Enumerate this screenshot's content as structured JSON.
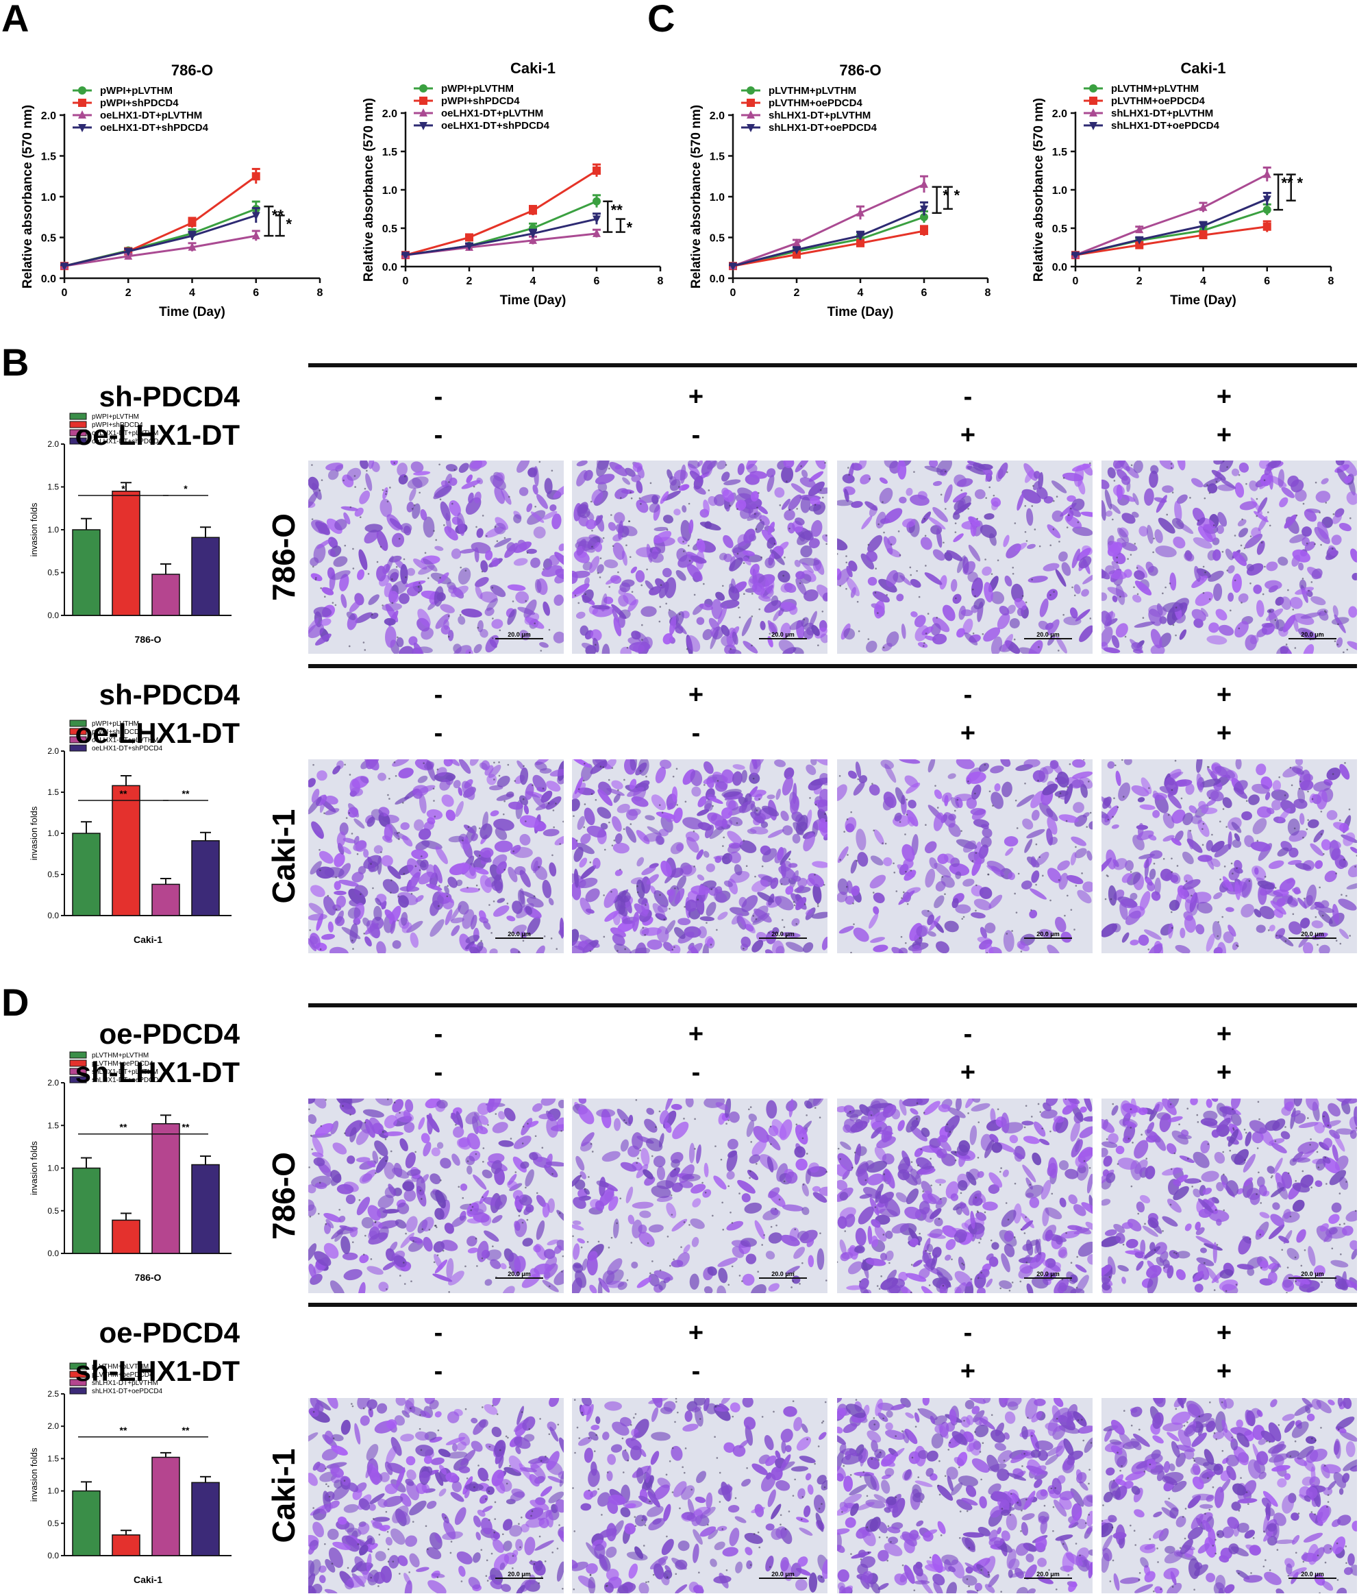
{
  "panels": {
    "A": "A",
    "B": "B",
    "C": "C",
    "D": "D"
  },
  "colors": {
    "green": "#3aa040",
    "red": "#e53327",
    "magenta": "#aa4a92",
    "navy": "#2d2a72",
    "stain": "#8a50c2",
    "field": "#dfe1ec"
  },
  "chart_data": [
    {
      "id": "A1",
      "type": "line",
      "title": "786-O",
      "xlabel": "Time (Day)",
      "ylabel": "Relative absorbance (570 nm)",
      "xlim": [
        0,
        8
      ],
      "ylim": [
        0,
        2.0
      ],
      "xticks": [
        "0",
        "2",
        "4",
        "6",
        "8"
      ],
      "yticks": [
        "0.0",
        "0.5",
        "1.0",
        "1.5",
        "2.0"
      ],
      "x": [
        0,
        2,
        4,
        6
      ],
      "series": [
        {
          "name": "pWPI+pLVTHM",
          "color": "#3aa040",
          "marker": "circle",
          "values": [
            0.15,
            0.34,
            0.55,
            0.85
          ],
          "err": [
            0.01,
            0.03,
            0.05,
            0.09
          ]
        },
        {
          "name": "pWPI+shPDCD4",
          "color": "#e53327",
          "marker": "square",
          "values": [
            0.15,
            0.33,
            0.68,
            1.25
          ],
          "err": [
            0.01,
            0.03,
            0.06,
            0.09
          ]
        },
        {
          "name": "oeLHX1-DT+pLVTHM",
          "color": "#aa4a92",
          "marker": "triangle-up",
          "values": [
            0.15,
            0.27,
            0.38,
            0.52
          ],
          "err": [
            0.01,
            0.03,
            0.05,
            0.06
          ]
        },
        {
          "name": "oeLHX1-DT+shPDCD4",
          "color": "#2d2a72",
          "marker": "triangle-down",
          "values": [
            0.15,
            0.33,
            0.52,
            0.77
          ],
          "err": [
            0.01,
            0.03,
            0.05,
            0.09
          ]
        }
      ],
      "brackets": [
        {
          "x": 6.4,
          "y1": 0.52,
          "y2": 0.88,
          "label": "**"
        },
        {
          "x": 6.75,
          "y1": 0.52,
          "y2": 0.77,
          "label": "*"
        }
      ]
    },
    {
      "id": "A2",
      "type": "line",
      "title": "Caki-1",
      "xlabel": "Time (Day)",
      "ylabel": "Relative absorbance (570 nm)",
      "xlim": [
        0,
        8
      ],
      "ylim": [
        0,
        2.0
      ],
      "xticks": [
        "0",
        "2",
        "4",
        "6",
        "8"
      ],
      "yticks": [
        "0.0",
        "0.5",
        "1.0",
        "1.5",
        "2.0"
      ],
      "x": [
        0,
        2,
        4,
        6
      ],
      "series": [
        {
          "name": "pWPI+pLVTHM",
          "color": "#3aa040",
          "marker": "circle",
          "values": [
            0.15,
            0.27,
            0.5,
            0.85
          ],
          "err": [
            0.01,
            0.03,
            0.06,
            0.08
          ]
        },
        {
          "name": "pWPI+shPDCD4",
          "color": "#e53327",
          "marker": "square",
          "values": [
            0.15,
            0.38,
            0.73,
            1.25
          ],
          "err": [
            0.01,
            0.03,
            0.06,
            0.08
          ]
        },
        {
          "name": "oeLHX1-DT+pLVTHM",
          "color": "#aa4a92",
          "marker": "triangle-up",
          "values": [
            0.15,
            0.25,
            0.34,
            0.43
          ],
          "err": [
            0.01,
            0.03,
            0.05,
            0.05
          ]
        },
        {
          "name": "oeLHX1-DT+shPDCD4",
          "color": "#2d2a72",
          "marker": "triangle-down",
          "values": [
            0.15,
            0.27,
            0.43,
            0.62
          ],
          "err": [
            0.01,
            0.03,
            0.05,
            0.07
          ]
        }
      ],
      "brackets": [
        {
          "x": 6.35,
          "y1": 0.45,
          "y2": 0.85,
          "label": "**"
        },
        {
          "x": 6.75,
          "y1": 0.45,
          "y2": 0.62,
          "label": "*"
        }
      ]
    },
    {
      "id": "C1",
      "type": "line",
      "title": "786-O",
      "xlabel": "Time (Day)",
      "ylabel": "Relative absorbance (570 nm)",
      "xlim": [
        0,
        8
      ],
      "ylim": [
        0,
        2.0
      ],
      "xticks": [
        "0",
        "2",
        "4",
        "6",
        "8"
      ],
      "yticks": [
        "0.0",
        "0.5",
        "1.0",
        "1.5",
        "2.0"
      ],
      "x": [
        0,
        2,
        4,
        6
      ],
      "series": [
        {
          "name": "pLVTHM+pLVTHM",
          "color": "#3aa040",
          "marker": "circle",
          "values": [
            0.15,
            0.33,
            0.48,
            0.75
          ],
          "err": [
            0.01,
            0.03,
            0.05,
            0.07
          ]
        },
        {
          "name": "pLVTHM+oePDCD4",
          "color": "#e53327",
          "marker": "square",
          "values": [
            0.15,
            0.29,
            0.43,
            0.58
          ],
          "err": [
            0.01,
            0.03,
            0.04,
            0.06
          ]
        },
        {
          "name": "shLHX1-DT+pLVTHM",
          "color": "#aa4a92",
          "marker": "triangle-up",
          "values": [
            0.15,
            0.43,
            0.8,
            1.15
          ],
          "err": [
            0.01,
            0.04,
            0.08,
            0.1
          ]
        },
        {
          "name": "shLHX1-DT+oePDCD4",
          "color": "#2d2a72",
          "marker": "triangle-down",
          "values": [
            0.15,
            0.35,
            0.52,
            0.85
          ],
          "err": [
            0.01,
            0.03,
            0.05,
            0.08
          ]
        }
      ],
      "brackets": [
        {
          "x": 6.4,
          "y1": 0.8,
          "y2": 1.12,
          "label": "*"
        },
        {
          "x": 6.75,
          "y1": 0.85,
          "y2": 1.12,
          "label": "*"
        }
      ]
    },
    {
      "id": "C2",
      "type": "line",
      "title": "Caki-1",
      "xlabel": "Time (Day)",
      "ylabel": "Relative absorbance (570 nm)",
      "xlim": [
        0,
        8
      ],
      "ylim": [
        0,
        2.0
      ],
      "xticks": [
        "0",
        "2",
        "4",
        "6",
        "8"
      ],
      "yticks": [
        "0.0",
        "0.5",
        "1.0",
        "1.5",
        "2.0"
      ],
      "x": [
        0,
        2,
        4,
        6
      ],
      "series": [
        {
          "name": "pLVTHM+pLVTHM",
          "color": "#3aa040",
          "marker": "circle",
          "values": [
            0.15,
            0.34,
            0.47,
            0.74
          ],
          "err": [
            0.01,
            0.03,
            0.05,
            0.07
          ]
        },
        {
          "name": "pLVTHM+oePDCD4",
          "color": "#e53327",
          "marker": "square",
          "values": [
            0.15,
            0.28,
            0.41,
            0.52
          ],
          "err": [
            0.01,
            0.03,
            0.05,
            0.07
          ]
        },
        {
          "name": "shLHX1-DT+pLVTHM",
          "color": "#aa4a92",
          "marker": "triangle-up",
          "values": [
            0.15,
            0.48,
            0.77,
            1.2
          ],
          "err": [
            0.01,
            0.04,
            0.06,
            0.09
          ]
        },
        {
          "name": "shLHX1-DT+oePDCD4",
          "color": "#2d2a72",
          "marker": "triangle-down",
          "values": [
            0.15,
            0.35,
            0.53,
            0.88
          ],
          "err": [
            0.01,
            0.03,
            0.05,
            0.08
          ]
        }
      ],
      "brackets": [
        {
          "x": 6.35,
          "y1": 0.74,
          "y2": 1.2,
          "label": "**"
        },
        {
          "x": 6.75,
          "y1": 0.86,
          "y2": 1.2,
          "label": "*"
        }
      ]
    },
    {
      "id": "B1",
      "type": "bar",
      "title": "786-O",
      "ylabel": "invasion folds",
      "ylim": [
        0,
        2.0
      ],
      "yticks": [
        "0.0",
        "0.5",
        "1.0",
        "1.5",
        "2.0"
      ],
      "categories": [
        "pWPI+pLVTHM",
        "pWPI+shPDCD4",
        "oeLHX1-DT+pLVTHM",
        "oeLHX1-DT+shPDCD4"
      ],
      "values": [
        1.0,
        1.45,
        0.48,
        0.91
      ],
      "err": [
        0.13,
        0.1,
        0.12,
        0.12
      ],
      "colors": [
        "#3a8e48",
        "#e4312d",
        "#b5458f",
        "#3c2a78"
      ],
      "sig": [
        {
          "from": 0,
          "to": 2,
          "label": "*"
        },
        {
          "from": 2,
          "to": 3,
          "label": "*"
        }
      ]
    },
    {
      "id": "B2",
      "type": "bar",
      "title": "Caki-1",
      "ylabel": "invasion folds",
      "ylim": [
        0,
        2.0
      ],
      "yticks": [
        "0.0",
        "0.5",
        "1.0",
        "1.5",
        "2.0"
      ],
      "categories": [
        "pWPI+pLVTHM",
        "pWPI+shPDCD4",
        "oeLHX1-DT+pLVTHM",
        "oeLHX1-DT+shPDCD4"
      ],
      "values": [
        1.0,
        1.58,
        0.38,
        0.91
      ],
      "err": [
        0.14,
        0.12,
        0.07,
        0.1
      ],
      "colors": [
        "#3a8e48",
        "#e4312d",
        "#b5458f",
        "#3c2a78"
      ],
      "sig": [
        {
          "from": 0,
          "to": 2,
          "label": "**"
        },
        {
          "from": 2,
          "to": 3,
          "label": "**"
        }
      ]
    },
    {
      "id": "D1",
      "type": "bar",
      "title": "786-O",
      "ylabel": "invasion folds",
      "ylim": [
        0,
        2.0
      ],
      "yticks": [
        "0.0",
        "0.5",
        "1.0",
        "1.5",
        "2.0"
      ],
      "categories": [
        "pLVTHM+pLVTHM",
        "pLVTHM+oePDCD4",
        "shLHX1-DT+pLVTHM",
        "shLHX1-DT+oePDCD4"
      ],
      "values": [
        1.0,
        0.39,
        1.52,
        1.04
      ],
      "err": [
        0.12,
        0.08,
        0.1,
        0.1
      ],
      "colors": [
        "#3a8e48",
        "#e4312d",
        "#b5458f",
        "#3c2a78"
      ],
      "sig": [
        {
          "from": 0,
          "to": 2,
          "label": "**"
        },
        {
          "from": 2,
          "to": 3,
          "label": "**"
        }
      ]
    },
    {
      "id": "D2",
      "type": "bar",
      "title": "Caki-1",
      "ylabel": "invasion folds",
      "ylim": [
        0,
        2.5
      ],
      "yticks": [
        "0.0",
        "0.5",
        "1.0",
        "1.5",
        "2.0",
        "2.5"
      ],
      "categories": [
        "pLVTHM+pLVTHM",
        "pLVTHM+oePDCD4",
        "shLHX1-DT+pLVTHM",
        "shLHX1-DT+oePDCD4"
      ],
      "values": [
        1.0,
        0.32,
        1.52,
        1.13
      ],
      "err": [
        0.14,
        0.07,
        0.07,
        0.09
      ],
      "colors": [
        "#3a8e48",
        "#e4312d",
        "#b5458f",
        "#3c2a78"
      ],
      "sig": [
        {
          "from": 0,
          "to": 2,
          "label": "**"
        },
        {
          "from": 2,
          "to": 3,
          "label": "**"
        }
      ]
    }
  ],
  "treatment_blocks": [
    {
      "id": "B-786",
      "row1_label": "sh-PDCD4",
      "row2_label": "oe-LHX1-DT",
      "row1": [
        "-",
        "+",
        "-",
        "+"
      ],
      "row2": [
        "-",
        "-",
        "+",
        "+"
      ],
      "cell_line": "786-O",
      "scale": "20.0 μm"
    },
    {
      "id": "B-Caki",
      "row1_label": "sh-PDCD4",
      "row2_label": "oe-LHX1-DT",
      "row1": [
        "-",
        "+",
        "-",
        "+"
      ],
      "row2": [
        "-",
        "-",
        "+",
        "+"
      ],
      "cell_line": "Caki-1",
      "scale": "20.0 μm"
    },
    {
      "id": "D-786",
      "row1_label": "oe-PDCD4",
      "row2_label": "sh-LHX1-DT",
      "row1": [
        "-",
        "+",
        "-",
        "+"
      ],
      "row2": [
        "-",
        "-",
        "+",
        "+"
      ],
      "cell_line": "786-O",
      "scale": "20.0 μm"
    },
    {
      "id": "D-Caki",
      "row1_label": "oe-PDCD4",
      "row2_label": "sh-LHX1-DT",
      "row1": [
        "-",
        "+",
        "-",
        "+"
      ],
      "row2": [
        "-",
        "-",
        "+",
        "+"
      ],
      "cell_line": "Caki-1",
      "scale": "20.0 μm"
    }
  ],
  "micrograph_density": [
    [
      0.55,
      0.95,
      0.42,
      0.62
    ],
    [
      0.8,
      1.0,
      0.4,
      0.7
    ],
    [
      0.68,
      0.38,
      1.0,
      0.72
    ],
    [
      0.8,
      0.42,
      1.0,
      0.78
    ]
  ]
}
